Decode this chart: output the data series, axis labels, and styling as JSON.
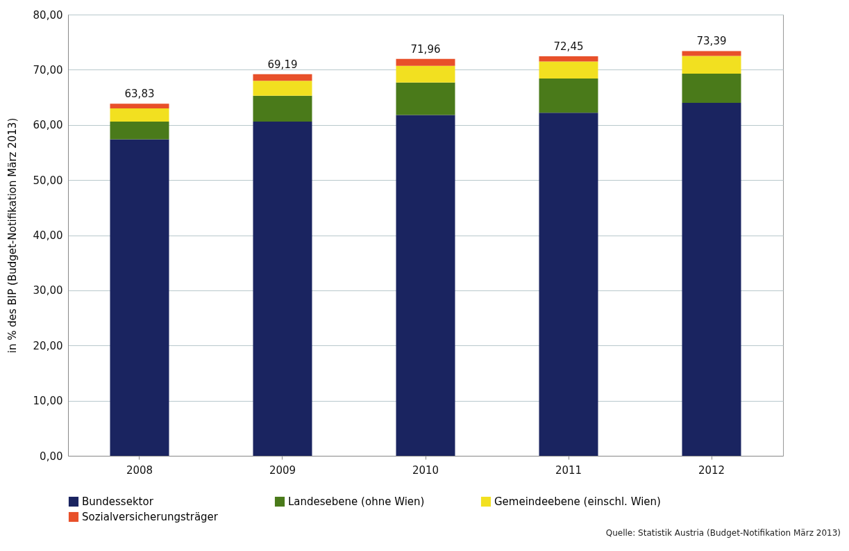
{
  "chart_data": {
    "type": "bar",
    "stacked": true,
    "ylabel": "in % des BIP (Budget-Notifikation März 2013)",
    "categories": [
      "2008",
      "2009",
      "2010",
      "2011",
      "2012"
    ],
    "series": [
      {
        "name": "Bundessektor",
        "color": "#1a2460",
        "values": [
          57.4,
          60.6,
          61.8,
          62.2,
          64.0
        ]
      },
      {
        "name": "Landesebene (ohne Wien)",
        "color": "#4a7a1a",
        "values": [
          3.2,
          4.7,
          5.9,
          6.2,
          5.3
        ]
      },
      {
        "name": "Gemeindeebene (einschl. Wien)",
        "color": "#f2e020",
        "values": [
          2.4,
          2.7,
          3.0,
          3.1,
          3.2
        ]
      },
      {
        "name": "Sozialversicherungsträger",
        "color": "#e8502a",
        "values": [
          0.83,
          1.19,
          1.26,
          0.95,
          0.89
        ]
      }
    ],
    "totals": [
      "63,83",
      "69,19",
      "71,96",
      "72,45",
      "73,39"
    ],
    "ylim": [
      0,
      80
    ],
    "yticks": [
      {
        "value": 0,
        "label": "0,00"
      },
      {
        "value": 10,
        "label": "10,00"
      },
      {
        "value": 20,
        "label": "20,00"
      },
      {
        "value": 30,
        "label": "30,00"
      },
      {
        "value": 40,
        "label": "40,00"
      },
      {
        "value": 50,
        "label": "50,00"
      },
      {
        "value": 60,
        "label": "60,00"
      },
      {
        "value": 70,
        "label": "70,00"
      },
      {
        "value": 80,
        "label": "80,00"
      }
    ],
    "grid": "y",
    "legend": "bottom",
    "annotations": [
      "Quelle: Statistik Austria (Budget-Notifikation März 2013)"
    ]
  }
}
